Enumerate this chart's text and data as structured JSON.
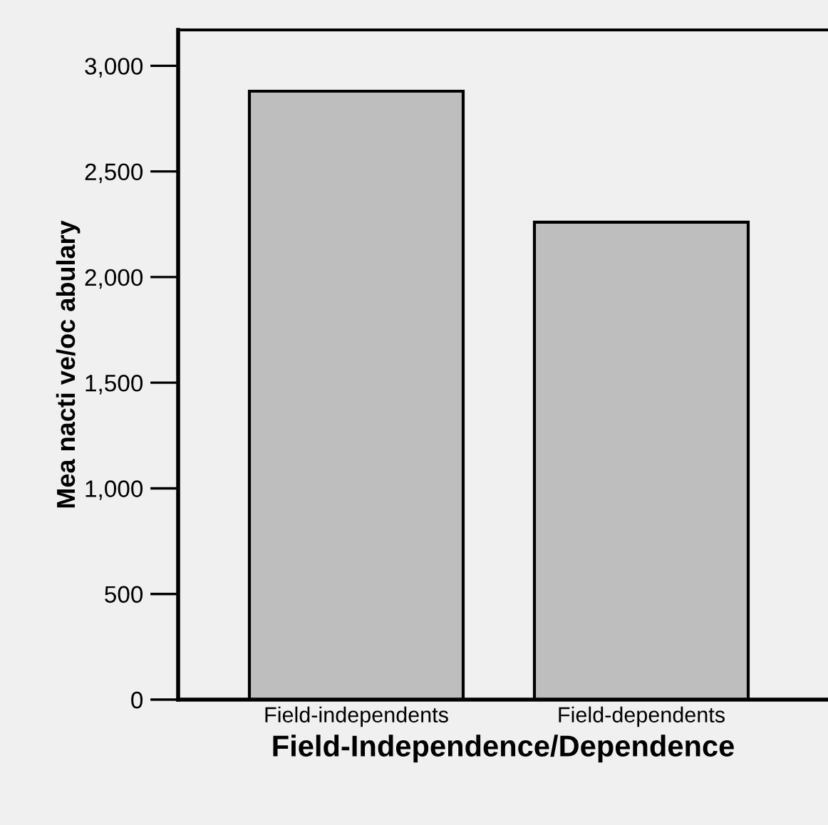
{
  "chart_data": {
    "type": "bar",
    "xlabel": "Field-Independence/Dependence",
    "ylabel": "Mea nacti ve/oc abulary",
    "categories": [
      "Field-independents",
      "Field-dependents"
    ],
    "values": [
      2880,
      2260
    ],
    "color": "#bebebe",
    "ylim": [
      0,
      3170
    ],
    "yticks": [
      0,
      {
        "value": 500,
        "label": "500"
      },
      {
        "value": 1000,
        "label": "1,000"
      },
      {
        "value": 1500,
        "label": "1,500"
      },
      {
        "value": 2000,
        "label": "2,000"
      },
      {
        "value": 2500,
        "label": "2,500"
      },
      {
        "value": 3000,
        "label": "3,000"
      }
    ],
    "grid": false,
    "legend": false
  }
}
